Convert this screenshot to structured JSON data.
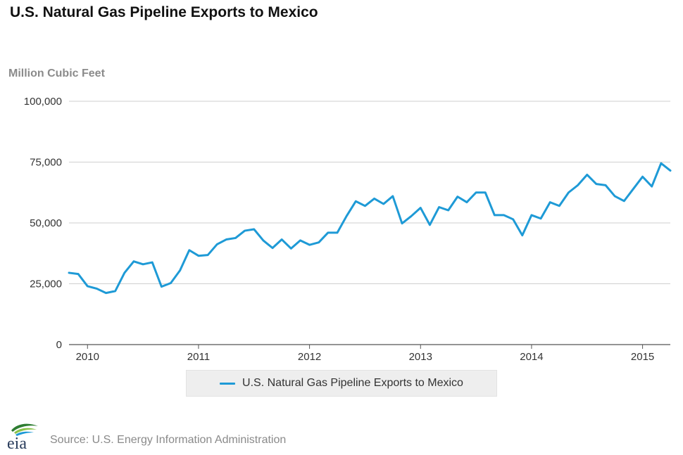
{
  "title": "U.S. Natural Gas Pipeline Exports to Mexico",
  "y_unit": "Million Cubic Feet",
  "legend_label": "U.S. Natural Gas Pipeline Exports to Mexico",
  "source": "Source: U.S. Energy Information Administration",
  "logo_text": "eia",
  "colors": {
    "series": "#1e9ad6",
    "grid": "#cfcfcf",
    "axis_text": "#333333"
  },
  "chart_data": {
    "type": "line",
    "title": "U.S. Natural Gas Pipeline Exports to Mexico",
    "ylabel": "Million Cubic Feet",
    "xlabel": "",
    "ylim": [
      0,
      100000
    ],
    "yticks": [
      0,
      25000,
      50000,
      75000,
      100000
    ],
    "ytick_labels": [
      "0",
      "25,000",
      "50,000",
      "75,000",
      "100,000"
    ],
    "xticks": [
      "2010",
      "2011",
      "2012",
      "2013",
      "2014",
      "2015"
    ],
    "grid": true,
    "legend_position": "bottom",
    "series": [
      {
        "name": "U.S. Natural Gas Pipeline Exports to Mexico",
        "x": [
          "2009-11",
          "2009-12",
          "2010-01",
          "2010-02",
          "2010-03",
          "2010-04",
          "2010-05",
          "2010-06",
          "2010-07",
          "2010-08",
          "2010-09",
          "2010-10",
          "2010-11",
          "2010-12",
          "2011-01",
          "2011-02",
          "2011-03",
          "2011-04",
          "2011-05",
          "2011-06",
          "2011-07",
          "2011-08",
          "2011-09",
          "2011-10",
          "2011-11",
          "2011-12",
          "2012-01",
          "2012-02",
          "2012-03",
          "2012-04",
          "2012-05",
          "2012-06",
          "2012-07",
          "2012-08",
          "2012-09",
          "2012-10",
          "2012-11",
          "2012-12",
          "2013-01",
          "2013-02",
          "2013-03",
          "2013-04",
          "2013-05",
          "2013-06",
          "2013-07",
          "2013-08",
          "2013-09",
          "2013-10",
          "2013-11",
          "2013-12",
          "2014-01",
          "2014-02",
          "2014-03",
          "2014-04",
          "2014-05",
          "2014-06",
          "2014-07",
          "2014-08",
          "2014-09",
          "2014-10",
          "2014-11",
          "2014-12",
          "2015-01",
          "2015-02",
          "2015-03",
          "2015-04"
        ],
        "values": [
          29500,
          29000,
          24000,
          23000,
          21200,
          22000,
          29500,
          34200,
          33000,
          33800,
          23800,
          25300,
          30500,
          38800,
          36500,
          36800,
          41200,
          43200,
          43800,
          46800,
          47400,
          42800,
          39700,
          43200,
          39500,
          42800,
          41000,
          42000,
          46000,
          46000,
          52800,
          58900,
          57000,
          60000,
          57800,
          61000,
          49800,
          52800,
          56200,
          49200,
          56500,
          55200,
          60800,
          58500,
          62500,
          62500,
          53200,
          53200,
          51500,
          44900,
          53200,
          51800,
          58500,
          57000,
          62500,
          65500,
          69800,
          66000,
          65500,
          61000,
          59000,
          64000,
          69000,
          65000,
          74500,
          71500
        ]
      }
    ]
  }
}
